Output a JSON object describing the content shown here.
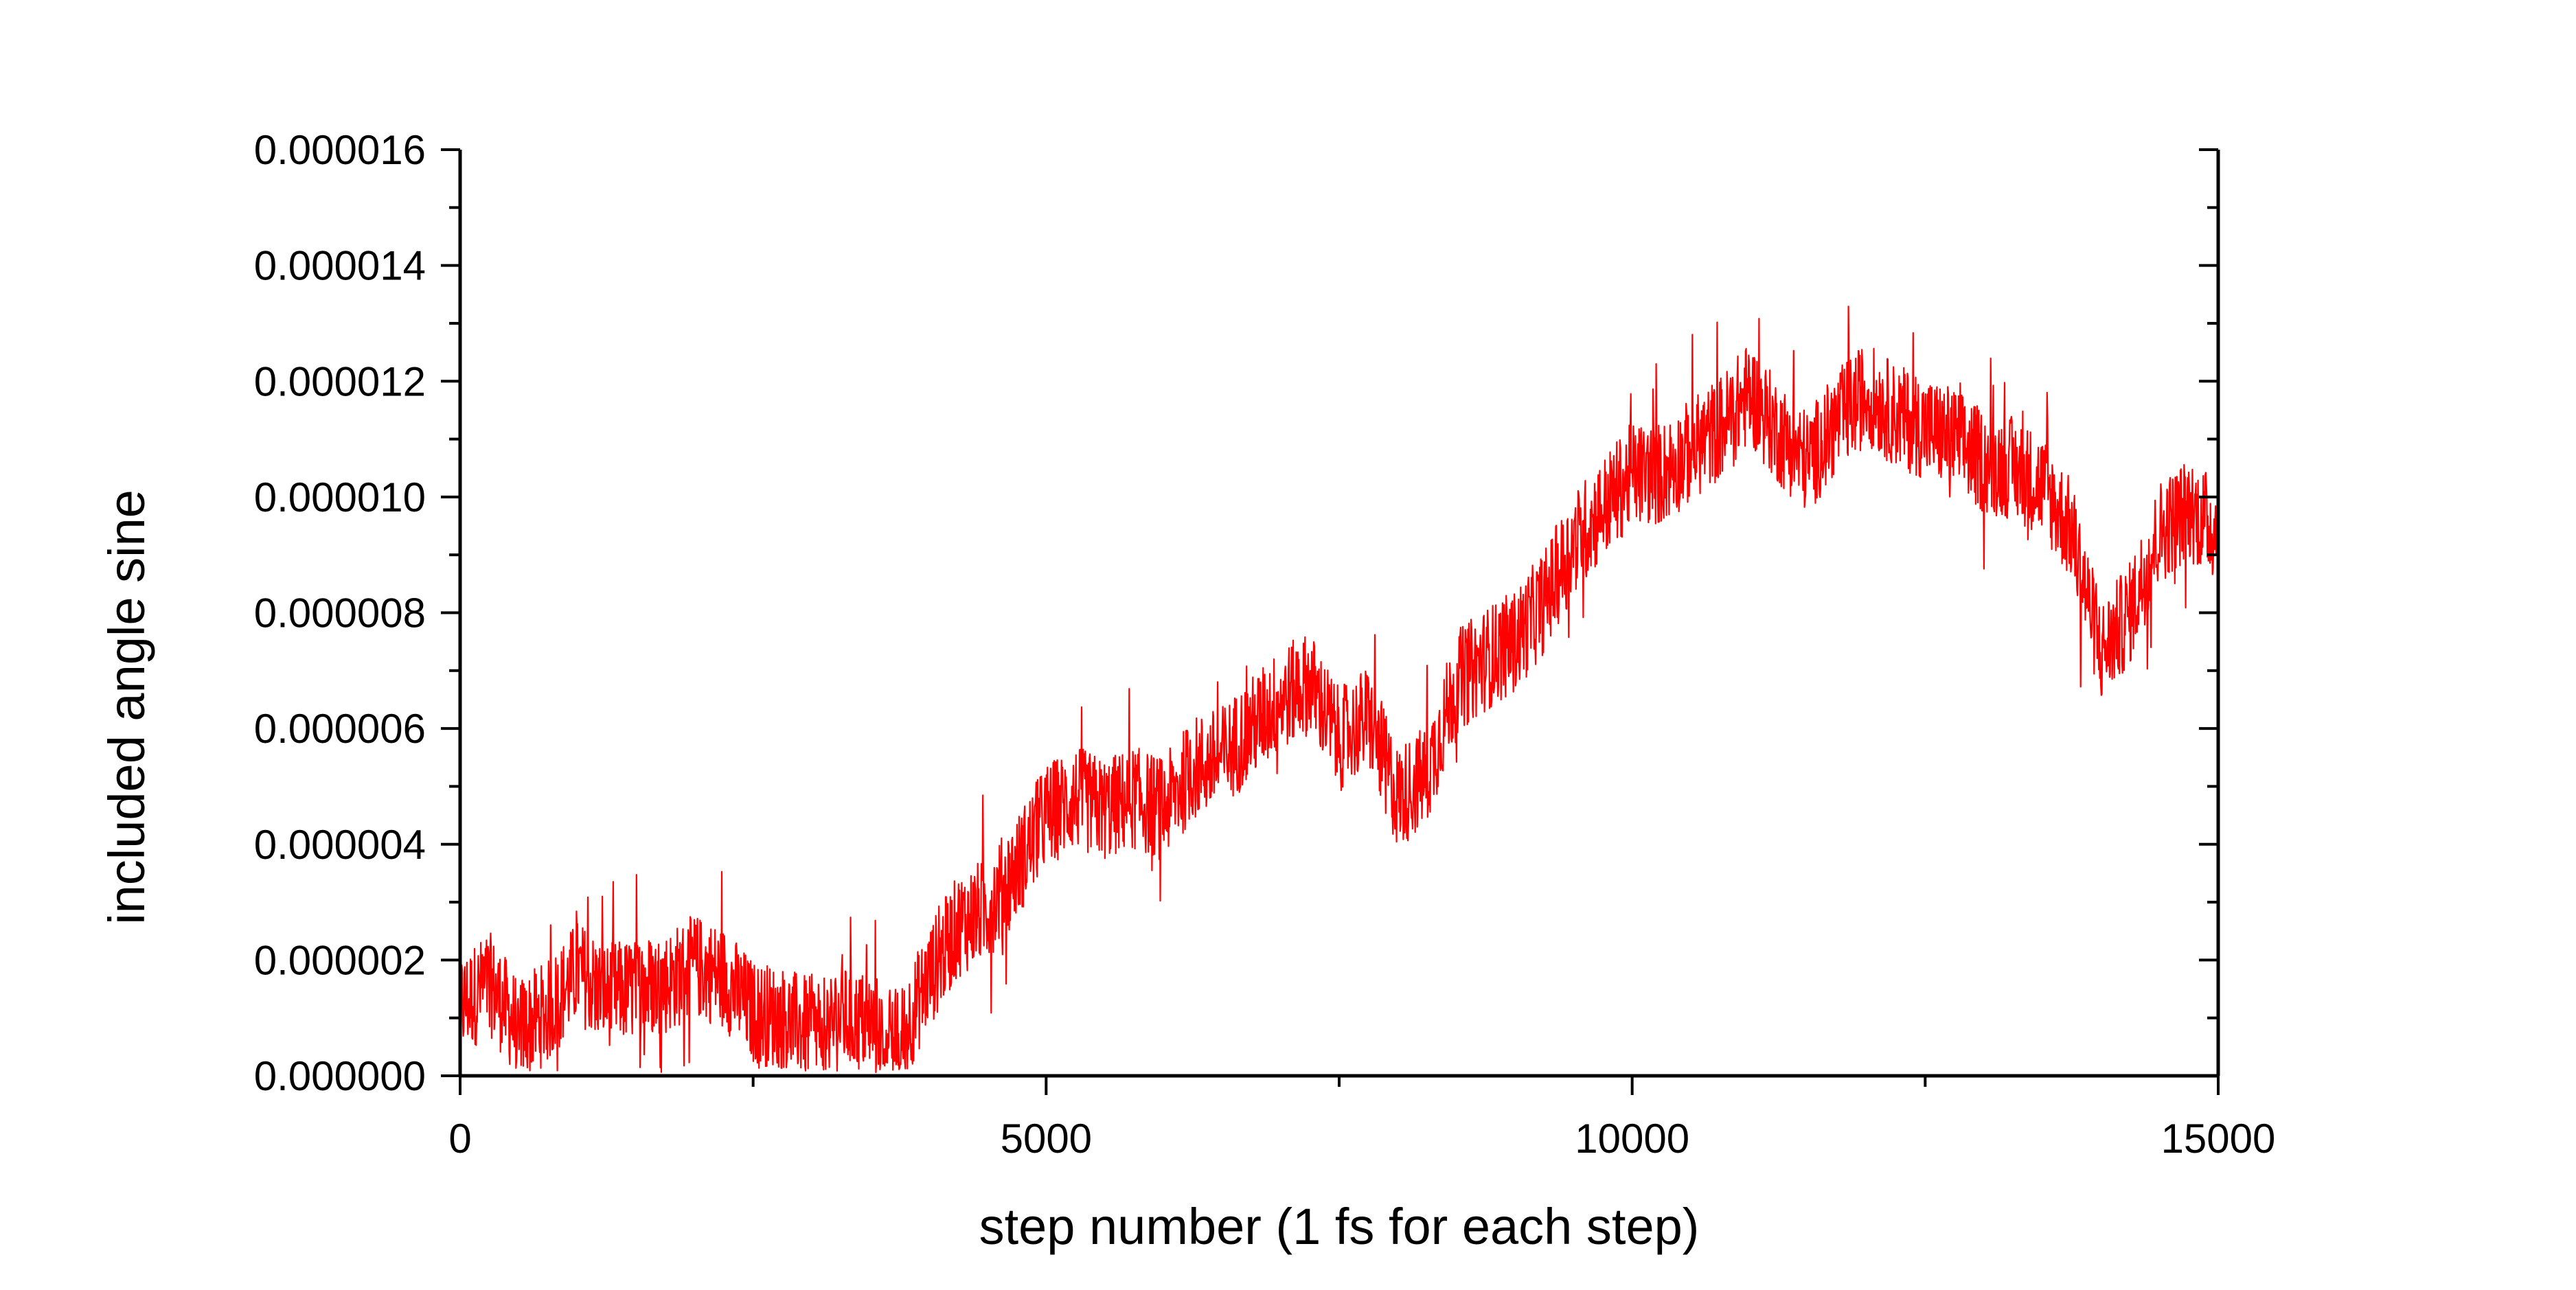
{
  "chart_data": {
    "type": "line",
    "title": "",
    "xlabel": "step number (1 fs for each step)",
    "ylabel": "included angle sine",
    "xlim": [
      0,
      15000
    ],
    "ylim": [
      0,
      1.6e-05
    ],
    "x_ticks": [
      0,
      5000,
      10000,
      15000
    ],
    "x_tick_labels": [
      "0",
      "5000",
      "10000",
      "15000"
    ],
    "y_ticks": [
      0,
      2e-06,
      4e-06,
      6e-06,
      8e-06,
      1e-05,
      1.2e-05,
      1.4e-05,
      1.6e-05
    ],
    "y_tick_labels": [
      "0.000000",
      "0.000002",
      "0.000004",
      "0.000006",
      "0.000008",
      "0.000010",
      "0.000012",
      "0.000014",
      "0.000016"
    ],
    "grid": false,
    "legend": "none",
    "series": [
      {
        "color": "#ff0000",
        "x": [
          0,
          250,
          500,
          750,
          1000,
          1250,
          1500,
          1750,
          2000,
          2250,
          2500,
          2750,
          3000,
          3250,
          3500,
          3750,
          4000,
          4250,
          4500,
          4750,
          5000,
          5250,
          5500,
          5750,
          6000,
          6250,
          6500,
          6750,
          7000,
          7250,
          7500,
          7750,
          8000,
          8250,
          8500,
          8750,
          9000,
          9250,
          9500,
          9750,
          10000,
          10250,
          10500,
          10750,
          11000,
          11250,
          11500,
          11750,
          12000,
          12250,
          12500,
          12750,
          13000,
          13250,
          13500,
          13750,
          14000,
          14250,
          14500,
          14750,
          15000
        ],
        "y": [
          1.2e-06,
          1.6e-06,
          8e-07,
          1.1e-06,
          1.8e-06,
          1.4e-06,
          1.5e-06,
          1.6e-06,
          1.9e-06,
          1.7e-06,
          1.1e-06,
          1e-06,
          8e-07,
          1e-06,
          9e-07,
          6e-07,
          1.7e-06,
          2.6e-06,
          2.9e-06,
          3.6e-06,
          4.5e-06,
          4.8e-06,
          4.6e-06,
          4.8e-06,
          4.6e-06,
          5.3e-06,
          5.5e-06,
          6e-06,
          6.5e-06,
          6.8e-06,
          5.8e-06,
          6.2e-06,
          4.8e-06,
          5.2e-06,
          6.8e-06,
          7.2e-06,
          7.5e-06,
          8.2e-06,
          9.2e-06,
          9.8e-06,
          1.04e-05,
          1.04e-05,
          1.08e-05,
          1.12e-05,
          1.18e-05,
          1.11e-05,
          1.06e-05,
          1.13e-05,
          1.18e-05,
          1.14e-05,
          1.12e-05,
          1.1e-05,
          1.06e-05,
          1.05e-05,
          1.02e-05,
          9.4e-06,
          7.3e-06,
          8e-06,
          9.4e-06,
          9.8e-06,
          9.4e-06
        ]
      }
    ]
  }
}
